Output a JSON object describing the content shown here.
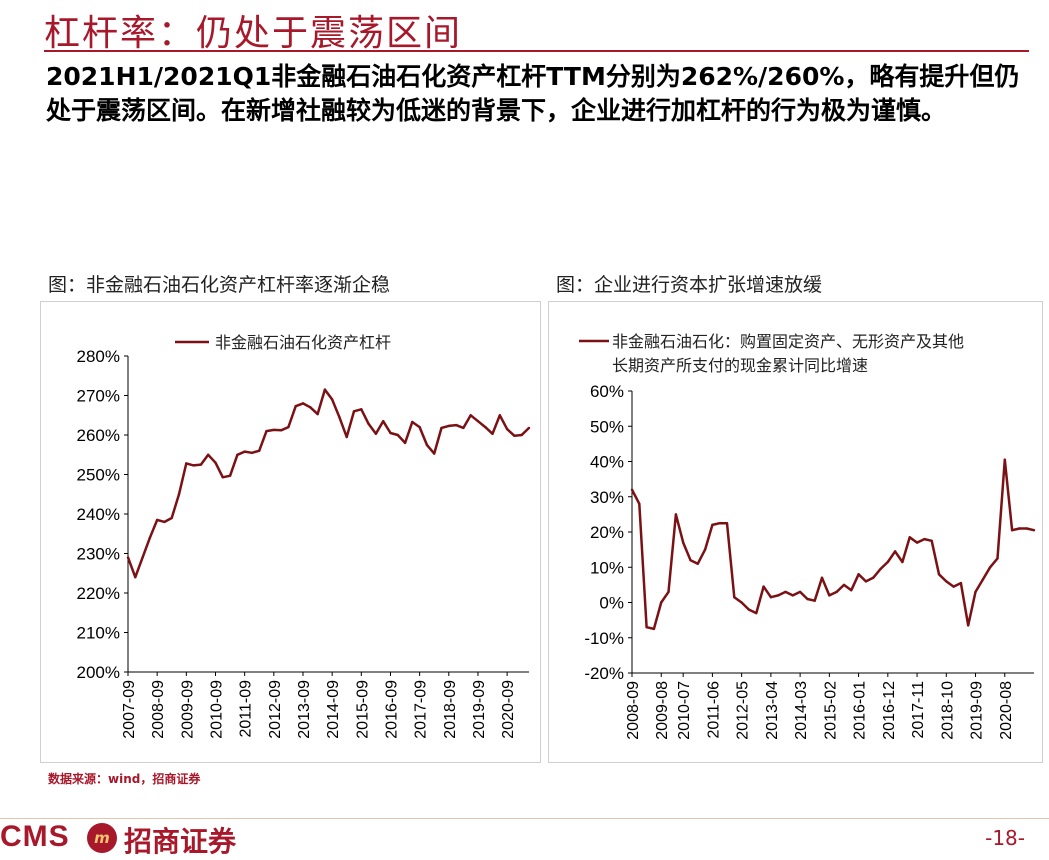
{
  "header": {
    "title": "杠杆率：仍处于震荡区间",
    "summary": "2021H1/2021Q1非金融石油石化资产杠杆TTM分别为262%/260%，略有提升但仍处于震荡区间。在新增社融较为低迷的背景下，企业进行加杠杆的行为极为谨慎。"
  },
  "colors": {
    "accent": "#a8182b",
    "series": "#7b1114"
  },
  "footer": {
    "source": "数据来源：wind，招商证券",
    "logo_latin": "CMS",
    "logo_mark": "m",
    "logo_chinese": "招商证券",
    "page_number": "-18-"
  },
  "chart_data": [
    {
      "type": "line",
      "title": "图：非金融石油石化资产杠杆率逐渐企稳",
      "series": [
        {
          "name": "非金融石油石化资产杠杆",
          "x": [
            "2007-09",
            "2007-12",
            "2008-03",
            "2008-06",
            "2008-09",
            "2008-12",
            "2009-03",
            "2009-06",
            "2009-09",
            "2009-12",
            "2010-03",
            "2010-06",
            "2010-09",
            "2010-12",
            "2011-03",
            "2011-06",
            "2011-09",
            "2011-12",
            "2012-03",
            "2012-06",
            "2012-09",
            "2012-12",
            "2013-03",
            "2013-06",
            "2013-09",
            "2013-12",
            "2014-03",
            "2014-06",
            "2014-09",
            "2014-12",
            "2015-03",
            "2015-06",
            "2015-09",
            "2015-12",
            "2016-03",
            "2016-06",
            "2016-09",
            "2016-12",
            "2017-03",
            "2017-06",
            "2017-09",
            "2017-12",
            "2018-03",
            "2018-06",
            "2018-09",
            "2018-12",
            "2019-03",
            "2019-06",
            "2019-09",
            "2019-12",
            "2020-03",
            "2020-06",
            "2020-09",
            "2020-12",
            "2021-03",
            "2021-06"
          ],
          "values": [
            229,
            224,
            229,
            234,
            238.5,
            238,
            239,
            245,
            252.8,
            252.3,
            252.5,
            255,
            253,
            249.3,
            249.7,
            255,
            255.8,
            255.5,
            256,
            261,
            261.3,
            261.2,
            262,
            267.3,
            268,
            267,
            265.3,
            271.5,
            269,
            264.5,
            259.5,
            266,
            266.5,
            262.8,
            260.3,
            263.5,
            260.5,
            260,
            258,
            263.3,
            262,
            257.5,
            255.3,
            261.8,
            262.3,
            262.5,
            261.8,
            265,
            263.5,
            262,
            260.3,
            265,
            261.5,
            259.8,
            260,
            261.8
          ]
        }
      ],
      "ylim": [
        200,
        280
      ],
      "yticks": [
        "200%",
        "210%",
        "220%",
        "230%",
        "240%",
        "250%",
        "260%",
        "270%",
        "280%"
      ],
      "xticks": [
        "2007-09",
        "2008-09",
        "2009-09",
        "2010-09",
        "2011-09",
        "2012-09",
        "2013-09",
        "2014-09",
        "2015-09",
        "2016-09",
        "2017-09",
        "2018-09",
        "2019-09",
        "2020-09"
      ],
      "legend_position": "top"
    },
    {
      "type": "line",
      "title": "图：企业进行资本扩张增速放缓",
      "series": [
        {
          "name": "非金融石油石化：购置固定资产、无形资产及其他长期资产所支付的现金累计同比增速",
          "x": [
            "2008-09",
            "2008-12",
            "2009-03",
            "2009-06",
            "2009-08",
            "2009-12",
            "2010-03",
            "2010-07",
            "2010-09",
            "2010-12",
            "2011-03",
            "2011-06",
            "2011-09",
            "2011-12",
            "2012-03",
            "2012-05",
            "2012-09",
            "2012-12",
            "2013-03",
            "2013-04",
            "2013-06",
            "2013-09",
            "2013-12",
            "2014-03",
            "2014-06",
            "2014-09",
            "2014-12",
            "2015-02",
            "2015-06",
            "2015-09",
            "2015-12",
            "2016-01",
            "2016-03",
            "2016-06",
            "2016-09",
            "2016-12",
            "2017-03",
            "2017-06",
            "2017-09",
            "2017-11",
            "2017-12",
            "2018-03",
            "2018-06",
            "2018-10",
            "2018-12",
            "2019-03",
            "2019-06",
            "2019-09",
            "2019-12",
            "2020-03",
            "2020-06",
            "2020-08",
            "2020-09",
            "2020-12",
            "2021-03",
            "2021-06"
          ],
          "values": [
            32,
            28,
            -7,
            -7.5,
            0,
            3,
            25,
            17,
            12,
            11,
            15,
            22,
            22.5,
            22.5,
            1.5,
            0,
            -2,
            -3,
            4.5,
            1.5,
            2,
            3,
            2,
            3,
            1,
            0.5,
            7,
            2,
            3,
            5,
            3.5,
            8,
            6,
            7,
            9.5,
            11.5,
            14.5,
            11.5,
            18.5,
            17,
            18,
            17.5,
            8,
            6,
            4.5,
            5.5,
            -6.5,
            3,
            6.5,
            10,
            12.5,
            40.5,
            20.5,
            21,
            21,
            20.5
          ]
        }
      ],
      "ylim": [
        -20,
        60
      ],
      "yticks": [
        "-20%",
        "-10%",
        "0%",
        "10%",
        "20%",
        "30%",
        "40%",
        "50%",
        "60%"
      ],
      "xticks": [
        "2008-09",
        "2009-08",
        "2010-07",
        "2011-06",
        "2012-05",
        "2013-04",
        "2014-03",
        "2015-02",
        "2016-01",
        "2016-12",
        "2017-11",
        "2018-10",
        "2019-09",
        "2020-08"
      ],
      "legend_position": "top"
    }
  ]
}
